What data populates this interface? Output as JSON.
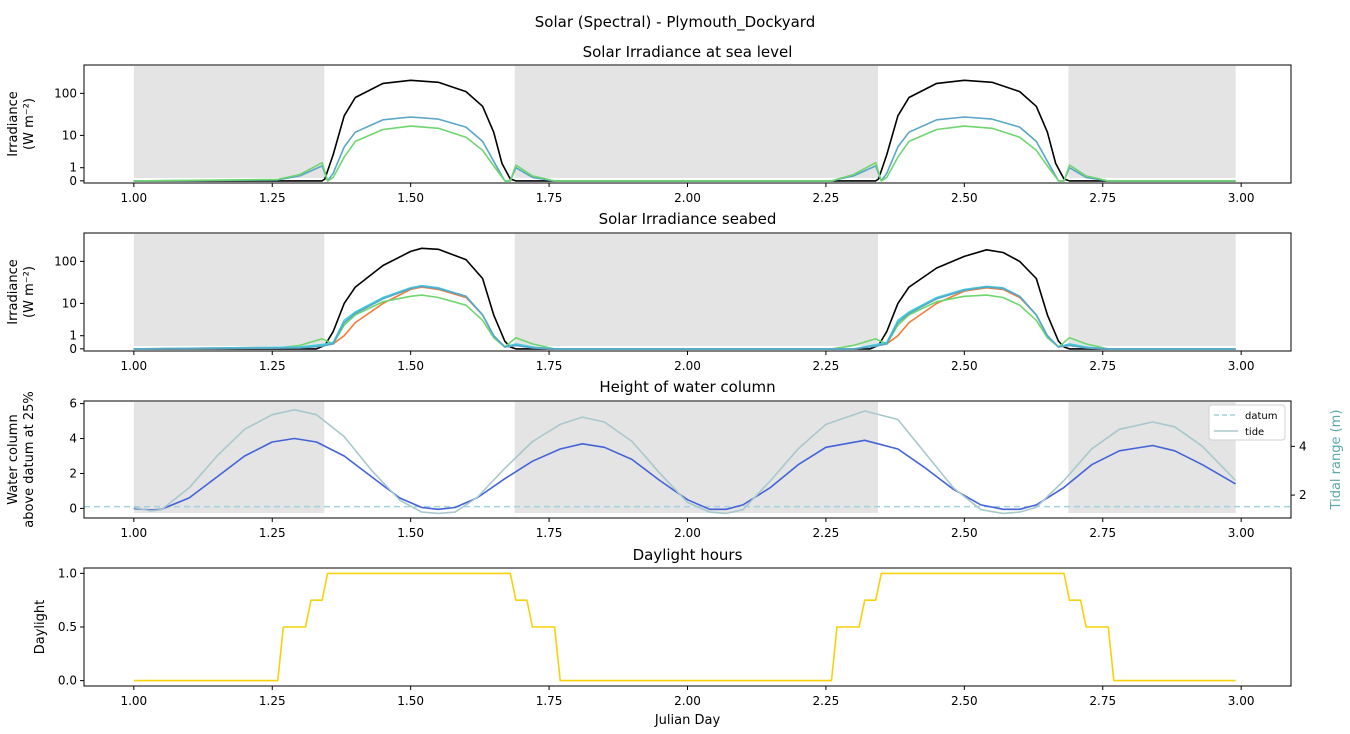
{
  "figure": {
    "suptitle": "Solar (Spectral) - Plymouth_Dockyard"
  },
  "colors": {
    "night_shade": "#e4e4e4",
    "black": "#000000",
    "blue_spectral": "#5aa6c8",
    "cyan": "#3fd1e0",
    "green": "#6fd66f",
    "orange": "#f07d3a",
    "water_column": "#4463d8",
    "tide": "#a8c8cc",
    "datum": "#a0d4dc",
    "daylight": "#f5d20a",
    "tidal_axis": "#5fa8a8"
  },
  "chart_data": [
    {
      "type": "line",
      "title": "Solar Irradiance at sea level",
      "ylabel": [
        "Irradiance",
        "(W m⁻²)"
      ],
      "xlabel": "",
      "yscale": "symlog",
      "xlim": [
        0.91,
        3.09
      ],
      "ylim": [
        -0.12,
        450
      ],
      "xticks": [
        1.0,
        1.25,
        1.5,
        1.75,
        2.0,
        2.25,
        2.5,
        2.75,
        3.0
      ],
      "xtick_labels": [
        "1.00",
        "1.25",
        "1.50",
        "1.75",
        "2.00",
        "2.25",
        "2.50",
        "2.75",
        "3.00"
      ],
      "yticks": [
        0,
        1,
        10,
        100
      ],
      "ytick_labels": [
        "0",
        "1",
        "10",
        "100"
      ],
      "night_spans": [
        [
          1.0,
          1.344
        ],
        [
          1.688,
          2.344
        ],
        [
          2.688,
          2.99
        ]
      ],
      "series": [
        {
          "key": "total",
          "color": "black",
          "x": [
            1.0,
            1.34,
            1.345,
            1.36,
            1.38,
            1.4,
            1.45,
            1.5,
            1.55,
            1.6,
            1.63,
            1.65,
            1.665,
            1.68,
            1.69,
            2.34,
            2.345,
            2.36,
            2.38,
            2.4,
            2.45,
            2.5,
            2.55,
            2.6,
            2.63,
            2.65,
            2.665,
            2.68,
            2.69,
            2.99
          ],
          "y": [
            0,
            0,
            0.1,
            3,
            30,
            80,
            170,
            200,
            180,
            110,
            50,
            12,
            1.5,
            0.1,
            0,
            0,
            0.1,
            3,
            30,
            80,
            170,
            200,
            180,
            110,
            50,
            12,
            1.5,
            0.1,
            0,
            0
          ]
        },
        {
          "key": "blue",
          "color": "blue_spectral",
          "x": [
            1.0,
            1.26,
            1.3,
            1.34,
            1.35,
            1.36,
            1.38,
            1.4,
            1.45,
            1.5,
            1.55,
            1.6,
            1.63,
            1.65,
            1.67,
            1.68,
            1.69,
            1.72,
            1.76,
            2.26,
            2.3,
            2.34,
            2.35,
            2.36,
            2.38,
            2.4,
            2.45,
            2.5,
            2.55,
            2.6,
            2.63,
            2.65,
            2.67,
            2.68,
            2.69,
            2.72,
            2.76,
            2.99
          ],
          "y": [
            0,
            0.05,
            0.3,
            1.2,
            0,
            0.5,
            5,
            12,
            24,
            28,
            25,
            16,
            7,
            1.8,
            0,
            0,
            1.0,
            0.2,
            0,
            0,
            0.3,
            1.2,
            0,
            0.5,
            5,
            12,
            24,
            28,
            25,
            16,
            7,
            1.8,
            0,
            0,
            1.0,
            0.2,
            0,
            0
          ]
        },
        {
          "key": "green",
          "color": "green",
          "x": [
            1.0,
            1.26,
            1.3,
            1.34,
            1.35,
            1.36,
            1.38,
            1.4,
            1.45,
            1.5,
            1.55,
            1.6,
            1.63,
            1.65,
            1.67,
            1.68,
            1.69,
            1.72,
            1.76,
            2.26,
            2.3,
            2.34,
            2.35,
            2.36,
            2.38,
            2.4,
            2.45,
            2.5,
            2.55,
            2.6,
            2.63,
            2.65,
            2.67,
            2.68,
            2.69,
            2.72,
            2.76,
            2.99
          ],
          "y": [
            0,
            0.08,
            0.4,
            1.6,
            0,
            0.2,
            2.5,
            7,
            14,
            17,
            15,
            9,
            4,
            1.2,
            0,
            0,
            1.3,
            0.3,
            0,
            0,
            0.4,
            1.6,
            0,
            0.2,
            2.5,
            7,
            14,
            17,
            15,
            9,
            4,
            1.2,
            0,
            0,
            1.3,
            0.3,
            0,
            0
          ]
        }
      ]
    },
    {
      "type": "line",
      "title": "Solar Irradiance seabed",
      "ylabel": [
        "Irradiance",
        "(W m⁻²)"
      ],
      "xlabel": "",
      "yscale": "symlog",
      "xlim": [
        0.91,
        3.09
      ],
      "ylim": [
        -0.12,
        450
      ],
      "xticks": [
        1.0,
        1.25,
        1.5,
        1.75,
        2.0,
        2.25,
        2.5,
        2.75,
        3.0
      ],
      "xtick_labels": [
        "1.00",
        "1.25",
        "1.50",
        "1.75",
        "2.00",
        "2.25",
        "2.50",
        "2.75",
        "3.00"
      ],
      "yticks": [
        0,
        1,
        10,
        100
      ],
      "ytick_labels": [
        "0",
        "1",
        "10",
        "100"
      ],
      "night_spans": [
        [
          1.0,
          1.344
        ],
        [
          1.688,
          2.344
        ],
        [
          2.688,
          2.99
        ]
      ],
      "series": [
        {
          "key": "total",
          "color": "black",
          "x": [
            1.0,
            1.33,
            1.345,
            1.36,
            1.38,
            1.4,
            1.45,
            1.5,
            1.52,
            1.55,
            1.6,
            1.63,
            1.65,
            1.67,
            1.68,
            1.69,
            2.33,
            2.345,
            2.36,
            2.38,
            2.4,
            2.45,
            2.5,
            2.54,
            2.57,
            2.6,
            2.63,
            2.65,
            2.67,
            2.68,
            2.69,
            2.99
          ],
          "y": [
            0,
            0,
            0.2,
            1.5,
            10,
            25,
            80,
            170,
            200,
            190,
            110,
            40,
            5,
            0.5,
            0.1,
            0,
            0,
            0.2,
            1.5,
            10,
            25,
            70,
            130,
            185,
            160,
            100,
            40,
            5,
            0.5,
            0.1,
            0,
            0
          ]
        },
        {
          "key": "orange",
          "color": "orange",
          "x": [
            1.0,
            1.3,
            1.34,
            1.36,
            1.38,
            1.4,
            1.45,
            1.5,
            1.52,
            1.55,
            1.6,
            1.63,
            1.65,
            1.67,
            1.69,
            1.72,
            1.76,
            2.3,
            2.34,
            2.36,
            2.38,
            2.4,
            2.45,
            2.5,
            2.54,
            2.57,
            2.6,
            2.63,
            2.65,
            2.67,
            2.69,
            2.72,
            2.76,
            2.99
          ],
          "y": [
            0,
            0.1,
            0.2,
            0.3,
            1,
            3,
            10,
            22,
            25,
            22,
            14,
            5,
            1,
            0.1,
            0.2,
            0.1,
            0,
            0,
            0.2,
            0.3,
            1,
            3,
            10,
            20,
            24,
            22,
            14,
            5,
            1,
            0.1,
            0.2,
            0.1,
            0,
            0
          ]
        },
        {
          "key": "green",
          "color": "green",
          "x": [
            1.0,
            1.26,
            1.3,
            1.34,
            1.36,
            1.38,
            1.4,
            1.45,
            1.5,
            1.52,
            1.55,
            1.6,
            1.63,
            1.65,
            1.67,
            1.69,
            1.72,
            1.76,
            2.26,
            2.3,
            2.34,
            2.36,
            2.38,
            2.4,
            2.45,
            2.5,
            2.54,
            2.57,
            2.6,
            2.63,
            2.65,
            2.67,
            2.69,
            2.72,
            2.76,
            2.99
          ],
          "y": [
            0,
            0.05,
            0.2,
            0.7,
            0.3,
            2.5,
            5,
            11,
            15,
            16,
            14,
            9,
            3.5,
            0.8,
            0.1,
            0.8,
            0.3,
            0,
            0,
            0.2,
            0.7,
            0.3,
            2.5,
            5,
            11,
            15,
            16,
            14,
            9,
            3.5,
            0.8,
            0.1,
            0.8,
            0.3,
            0,
            0
          ]
        },
        {
          "key": "cyan",
          "color": "cyan",
          "x": [
            1.0,
            1.3,
            1.34,
            1.36,
            1.38,
            1.4,
            1.45,
            1.5,
            1.52,
            1.55,
            1.6,
            1.63,
            1.65,
            1.67,
            1.69,
            1.72,
            1.76,
            2.3,
            2.34,
            2.36,
            2.38,
            2.4,
            2.45,
            2.5,
            2.54,
            2.57,
            2.6,
            2.63,
            2.65,
            2.67,
            2.69,
            2.72,
            2.76,
            2.99
          ],
          "y": [
            0,
            0.1,
            0.25,
            0.4,
            3.5,
            6,
            14,
            24,
            27,
            24,
            15,
            5,
            1,
            0.1,
            0.3,
            0.1,
            0,
            0,
            0.25,
            0.4,
            3.5,
            6,
            14,
            22,
            26,
            24,
            15,
            5,
            1,
            0.1,
            0.3,
            0.1,
            0,
            0
          ]
        },
        {
          "key": "blue",
          "color": "blue_spectral",
          "x": [
            1.0,
            1.3,
            1.34,
            1.36,
            1.38,
            1.4,
            1.45,
            1.5,
            1.52,
            1.55,
            1.6,
            1.63,
            1.65,
            1.67,
            1.69,
            1.72,
            1.76,
            2.3,
            2.34,
            2.36,
            2.38,
            2.4,
            2.45,
            2.5,
            2.54,
            2.57,
            2.6,
            2.63,
            2.65,
            2.67,
            2.69,
            2.72,
            2.76,
            2.99
          ],
          "y": [
            0,
            0.05,
            0.15,
            0.3,
            3,
            5.5,
            13,
            23,
            26,
            23,
            15,
            5,
            1,
            0.1,
            0.2,
            0.05,
            0,
            0,
            0.15,
            0.3,
            3,
            5.5,
            13,
            21,
            25,
            23,
            15,
            5,
            1,
            0.1,
            0.2,
            0.05,
            0,
            0
          ]
        }
      ]
    },
    {
      "type": "line",
      "title": "Height of water column",
      "ylabel": [
        "Water column",
        "above datum at 25%"
      ],
      "ylabel_right": "Tidal range (m)",
      "xlabel": "",
      "xlim": [
        0.91,
        3.09
      ],
      "ylim": [
        -0.55,
        6.15
      ],
      "ylim_right": [
        1.06,
        5.86
      ],
      "xticks": [
        1.0,
        1.25,
        1.5,
        1.75,
        2.0,
        2.25,
        2.5,
        2.75,
        3.0
      ],
      "xtick_labels": [
        "1.00",
        "1.25",
        "1.50",
        "1.75",
        "2.00",
        "2.25",
        "2.50",
        "2.75",
        "3.00"
      ],
      "yticks": [
        0,
        2,
        4,
        6
      ],
      "ytick_labels": [
        "0",
        "2",
        "4",
        "6"
      ],
      "yticks_right": [
        2,
        4
      ],
      "ytick_labels_right": [
        "2",
        "4"
      ],
      "night_spans": [
        [
          1.0,
          1.344
        ],
        [
          1.688,
          2.344
        ],
        [
          2.688,
          2.99
        ]
      ],
      "legend": {
        "position": "upper right",
        "entries": [
          "datum",
          "tide"
        ]
      },
      "datum_y": 0.1,
      "series": [
        {
          "key": "water_column",
          "color": "water_column",
          "axis": "left",
          "x": [
            1.0,
            1.03,
            1.05,
            1.1,
            1.15,
            1.2,
            1.25,
            1.29,
            1.33,
            1.38,
            1.43,
            1.48,
            1.52,
            1.55,
            1.58,
            1.62,
            1.67,
            1.72,
            1.77,
            1.81,
            1.85,
            1.9,
            1.95,
            2.0,
            2.04,
            2.07,
            2.1,
            2.15,
            2.2,
            2.25,
            2.32,
            2.38,
            2.43,
            2.48,
            2.53,
            2.57,
            2.6,
            2.63,
            2.68,
            2.73,
            2.78,
            2.84,
            2.88,
            2.93,
            2.99
          ],
          "y": [
            0.0,
            -0.1,
            -0.05,
            0.6,
            1.8,
            3.0,
            3.8,
            4.0,
            3.8,
            3.0,
            1.8,
            0.6,
            0.05,
            -0.05,
            0.05,
            0.6,
            1.7,
            2.7,
            3.4,
            3.7,
            3.5,
            2.8,
            1.6,
            0.5,
            -0.05,
            -0.05,
            0.2,
            1.2,
            2.5,
            3.5,
            3.9,
            3.4,
            2.3,
            1.1,
            0.2,
            -0.05,
            -0.05,
            0.2,
            1.2,
            2.5,
            3.3,
            3.6,
            3.3,
            2.5,
            1.4
          ]
        },
        {
          "key": "tide",
          "color": "tide",
          "axis": "right",
          "x": [
            1.0,
            1.03,
            1.05,
            1.1,
            1.15,
            1.2,
            1.25,
            1.29,
            1.33,
            1.38,
            1.43,
            1.48,
            1.52,
            1.55,
            1.58,
            1.62,
            1.67,
            1.72,
            1.77,
            1.81,
            1.85,
            1.9,
            1.95,
            2.0,
            2.04,
            2.07,
            2.1,
            2.15,
            2.2,
            2.25,
            2.32,
            2.38,
            2.43,
            2.48,
            2.53,
            2.57,
            2.6,
            2.63,
            2.68,
            2.73,
            2.78,
            2.84,
            2.88,
            2.93,
            2.99
          ],
          "y": [
            1.5,
            1.35,
            1.4,
            2.3,
            3.6,
            4.7,
            5.3,
            5.5,
            5.3,
            4.4,
            3.0,
            1.8,
            1.3,
            1.25,
            1.3,
            1.9,
            3.1,
            4.2,
            4.9,
            5.2,
            5.0,
            4.2,
            2.9,
            1.7,
            1.3,
            1.25,
            1.4,
            2.6,
            3.9,
            4.9,
            5.45,
            5.1,
            3.7,
            2.3,
            1.4,
            1.25,
            1.3,
            1.5,
            2.6,
            3.9,
            4.7,
            5.0,
            4.8,
            4.0,
            2.6
          ]
        }
      ]
    },
    {
      "type": "line",
      "title": "Daylight hours",
      "ylabel": [
        "Daylight"
      ],
      "xlabel": "Julian Day",
      "xlim": [
        0.91,
        3.09
      ],
      "ylim": [
        -0.05,
        1.05
      ],
      "xticks": [
        1.0,
        1.25,
        1.5,
        1.75,
        2.0,
        2.25,
        2.5,
        2.75,
        3.0
      ],
      "xtick_labels": [
        "1.00",
        "1.25",
        "1.50",
        "1.75",
        "2.00",
        "2.25",
        "2.50",
        "2.75",
        "3.00"
      ],
      "yticks": [
        0.0,
        0.5,
        1.0
      ],
      "ytick_labels": [
        "0.0",
        "0.5",
        "1.0"
      ],
      "night_spans": [],
      "series": [
        {
          "key": "daylight",
          "color": "daylight",
          "x": [
            1.0,
            1.26,
            1.27,
            1.31,
            1.32,
            1.34,
            1.35,
            1.68,
            1.69,
            1.71,
            1.72,
            1.76,
            1.77,
            2.26,
            2.27,
            2.31,
            2.32,
            2.34,
            2.35,
            2.68,
            2.69,
            2.71,
            2.72,
            2.76,
            2.77,
            2.99
          ],
          "y": [
            0,
            0,
            0.5,
            0.5,
            0.75,
            0.75,
            1.0,
            1.0,
            0.75,
            0.75,
            0.5,
            0.5,
            0,
            0,
            0.5,
            0.5,
            0.75,
            0.75,
            1.0,
            1.0,
            0.75,
            0.75,
            0.5,
            0.5,
            0,
            0
          ]
        }
      ]
    }
  ]
}
